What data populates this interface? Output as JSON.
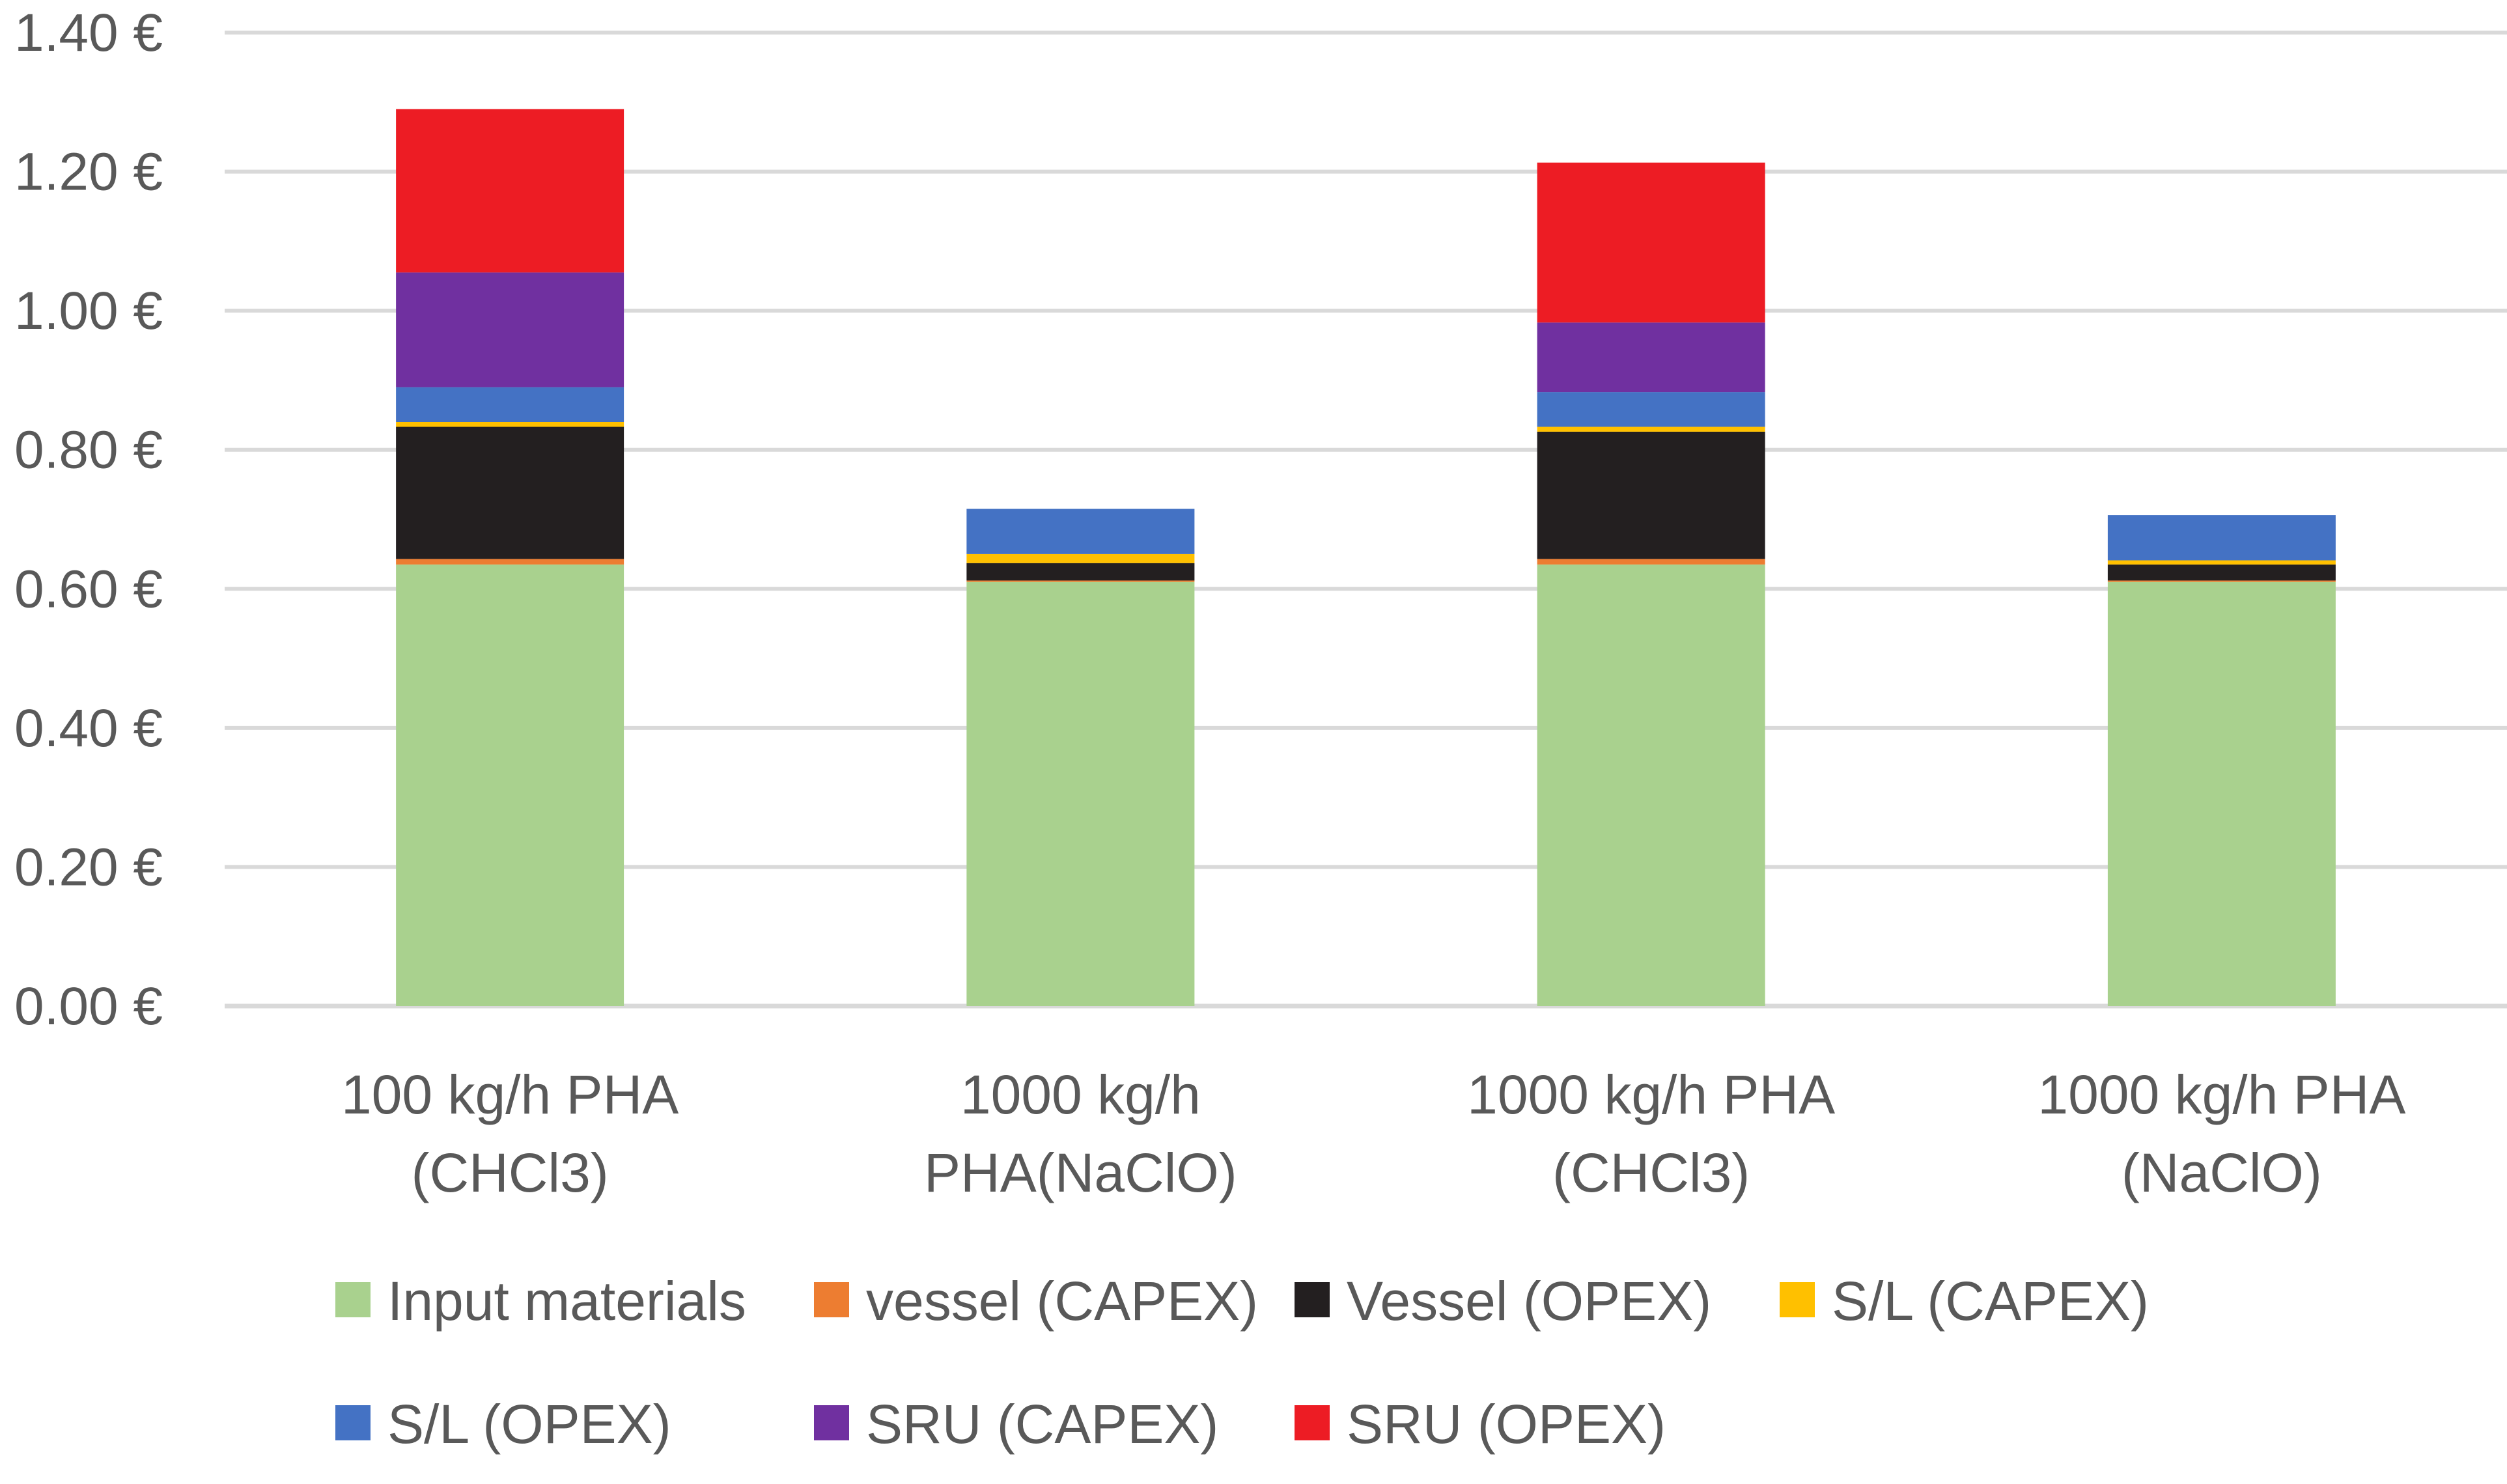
{
  "chart_data": {
    "type": "bar",
    "stacked": true,
    "title": "",
    "xlabel": "",
    "ylabel": "",
    "ylim": [
      0,
      1.4
    ],
    "y_ticks": [
      "0.00 €",
      "0.20 €",
      "0.40 €",
      "0.60 €",
      "0.80 €",
      "1.00 €",
      "1.20 €",
      "1.40 €"
    ],
    "grid": true,
    "legend_position": "bottom",
    "categories": [
      [
        "100 kg/h PHA",
        "(CHCl3)"
      ],
      [
        "1000 kg/h",
        "PHA(NaClO)"
      ],
      [
        "1000 kg/h PHA",
        "(CHCl3)"
      ],
      [
        "1000 kg/h PHA",
        "(NaClO)"
      ]
    ],
    "series": [
      {
        "name": "Input materials",
        "color": "#A9D18E",
        "values": [
          0.635,
          0.61,
          0.635,
          0.61
        ]
      },
      {
        "name": "vessel (CAPEX)",
        "color": "#ED7D31",
        "values": [
          0.008,
          0.002,
          0.008,
          0.002
        ]
      },
      {
        "name": "Vessel (OPEX)",
        "color": "#231F20",
        "values": [
          0.19,
          0.025,
          0.183,
          0.023
        ]
      },
      {
        "name": "S/L (CAPEX)",
        "color": "#FFC000",
        "values": [
          0.007,
          0.013,
          0.007,
          0.006
        ]
      },
      {
        "name": "S/L (OPEX)",
        "color": "#4472C4",
        "values": [
          0.05,
          0.065,
          0.05,
          0.065
        ]
      },
      {
        "name": "SRU (CAPEX)",
        "color": "#7030A0",
        "values": [
          0.165,
          0,
          0.1,
          0
        ]
      },
      {
        "name": "SRU (OPEX)",
        "color": "#ED1C24",
        "values": [
          0.235,
          0,
          0.23,
          0
        ]
      }
    ]
  }
}
